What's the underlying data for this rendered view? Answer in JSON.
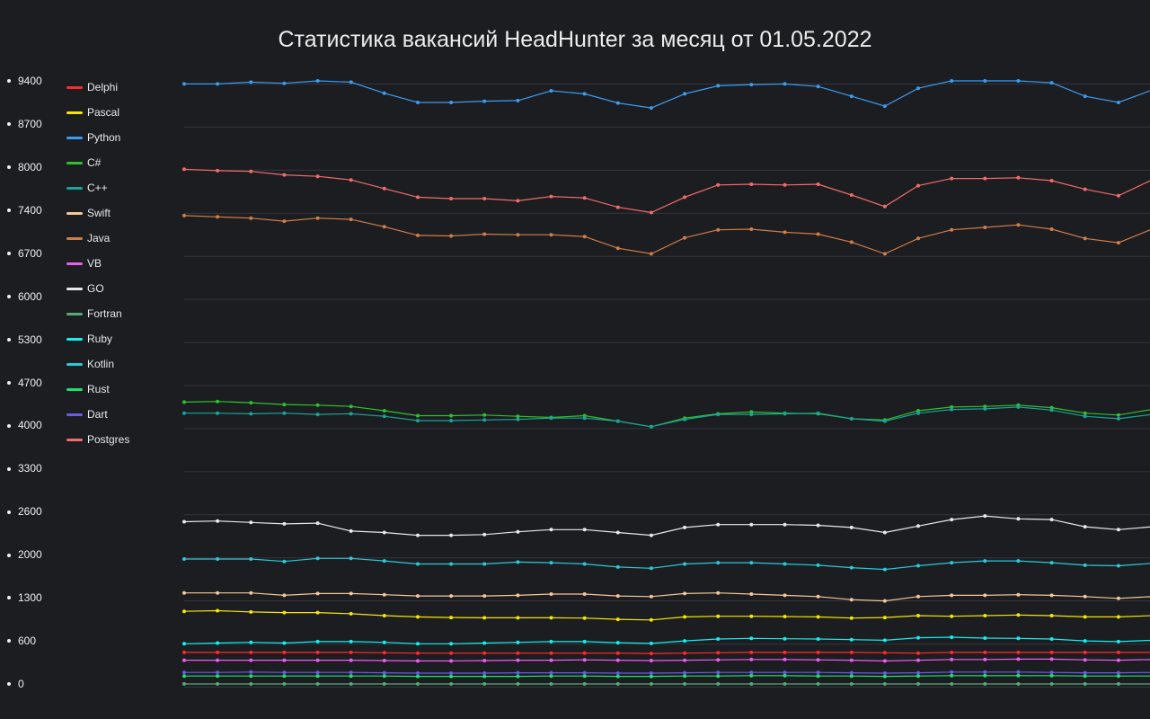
{
  "chart_data": {
    "type": "line",
    "title": "Статистика вакансий HeadHunter за месяц от 01.05.2022",
    "xlabel": "",
    "ylabel": "",
    "yticks": [
      "9400",
      "8700",
      "8000",
      "7400",
      "6700",
      "6000",
      "5300",
      "4700",
      "4000",
      "3300",
      "2600",
      "2000",
      "1300",
      "600",
      "0"
    ],
    "ylim": [
      0,
      9400
    ],
    "grid": true,
    "legend_position": "top-left",
    "x": [
      1,
      2,
      3,
      4,
      5,
      6,
      7,
      8,
      9,
      10,
      11,
      12,
      13,
      14,
      15,
      16,
      17,
      18,
      19,
      20,
      21,
      22,
      23,
      24,
      25,
      26,
      27,
      28,
      29,
      30
    ],
    "series": [
      {
        "name": "Delphi",
        "color": "#ff2a2a",
        "values": [
          440,
          440,
          440,
          440,
          440,
          440,
          435,
          430,
          430,
          430,
          430,
          430,
          430,
          430,
          425,
          430,
          435,
          440,
          440,
          440,
          440,
          435,
          430,
          440,
          440,
          440,
          440,
          440,
          440,
          440
        ]
      },
      {
        "name": "Pascal",
        "color": "#f5e50b",
        "values": [
          1080,
          1090,
          1070,
          1060,
          1060,
          1040,
          1010,
          990,
          980,
          975,
          975,
          975,
          970,
          950,
          940,
          990,
          1000,
          1000,
          995,
          990,
          970,
          980,
          1010,
          1000,
          1010,
          1020,
          1010,
          990,
          990,
          1010
        ]
      },
      {
        "name": "Python",
        "color": "#3b9cf0",
        "values": [
          9350,
          9350,
          9380,
          9360,
          9430,
          9380,
          9200,
          9050,
          9050,
          9070,
          9080,
          9240,
          9190,
          9040,
          8960,
          9190,
          9320,
          9340,
          9350,
          9310,
          9150,
          8990,
          9280,
          9440,
          9430,
          9410,
          9370,
          9150,
          9050,
          9250
        ]
      },
      {
        "name": "C#",
        "color": "#2dc22d",
        "values": [
          4380,
          4390,
          4370,
          4340,
          4330,
          4310,
          4240,
          4160,
          4160,
          4170,
          4150,
          4130,
          4160,
          4070,
          3980,
          4120,
          4190,
          4220,
          4200,
          4190,
          4110,
          4090,
          4240,
          4300,
          4310,
          4330,
          4290,
          4200,
          4170,
          4260
        ]
      },
      {
        "name": "C++",
        "color": "#1aa39a",
        "values": [
          4200,
          4200,
          4190,
          4200,
          4180,
          4190,
          4150,
          4080,
          4080,
          4090,
          4100,
          4120,
          4120,
          4070,
          3980,
          4100,
          4180,
          4180,
          4190,
          4200,
          4110,
          4070,
          4200,
          4260,
          4270,
          4300,
          4250,
          4150,
          4110,
          4180
        ]
      },
      {
        "name": "Swift",
        "color": "#f5c79a",
        "values": [
          1380,
          1380,
          1380,
          1340,
          1370,
          1370,
          1350,
          1330,
          1330,
          1330,
          1340,
          1360,
          1360,
          1330,
          1320,
          1370,
          1380,
          1360,
          1340,
          1320,
          1270,
          1250,
          1320,
          1340,
          1340,
          1350,
          1340,
          1320,
          1290,
          1320
        ]
      },
      {
        "name": "Java",
        "color": "#d07d48",
        "values": [
          7310,
          7290,
          7270,
          7220,
          7270,
          7250,
          7130,
          6990,
          6980,
          7010,
          7000,
          7000,
          6970,
          6780,
          6690,
          6950,
          7080,
          7090,
          7040,
          7010,
          6880,
          6690,
          6940,
          7080,
          7120,
          7160,
          7090,
          6940,
          6870,
          7090
        ]
      },
      {
        "name": "VB",
        "color": "#f05cf0",
        "values": [
          330,
          330,
          330,
          330,
          330,
          330,
          325,
          320,
          320,
          325,
          330,
          330,
          335,
          330,
          325,
          330,
          335,
          340,
          340,
          335,
          330,
          320,
          330,
          340,
          340,
          345,
          345,
          335,
          330,
          340
        ]
      },
      {
        "name": "GO",
        "color": "#e8e8e8",
        "values": [
          2460,
          2470,
          2450,
          2430,
          2440,
          2330,
          2310,
          2270,
          2270,
          2280,
          2320,
          2350,
          2350,
          2310,
          2270,
          2380,
          2420,
          2420,
          2420,
          2410,
          2380,
          2310,
          2400,
          2490,
          2540,
          2500,
          2490,
          2390,
          2350,
          2390
        ]
      },
      {
        "name": "Fortran",
        "color": "#5aa878",
        "values": [
          0,
          0,
          0,
          0,
          0,
          0,
          0,
          0,
          0,
          0,
          0,
          0,
          0,
          0,
          0,
          0,
          0,
          0,
          0,
          0,
          0,
          0,
          0,
          0,
          0,
          0,
          0,
          0,
          0,
          0
        ]
      },
      {
        "name": "Ruby",
        "color": "#12f0f0",
        "values": [
          560,
          570,
          580,
          570,
          590,
          590,
          580,
          560,
          560,
          570,
          580,
          590,
          590,
          575,
          565,
          600,
          630,
          640,
          635,
          630,
          620,
          610,
          650,
          660,
          645,
          640,
          630,
          600,
          590,
          610
        ]
      },
      {
        "name": "Kotlin",
        "color": "#2bc9d9",
        "values": [
          1930,
          1930,
          1930,
          1890,
          1940,
          1940,
          1900,
          1850,
          1850,
          1850,
          1880,
          1870,
          1850,
          1800,
          1780,
          1850,
          1870,
          1870,
          1850,
          1830,
          1790,
          1760,
          1820,
          1870,
          1900,
          1900,
          1870,
          1830,
          1820,
          1860
        ]
      },
      {
        "name": "Rust",
        "color": "#19e36a",
        "values": [
          110,
          110,
          110,
          110,
          110,
          110,
          110,
          105,
          105,
          105,
          105,
          110,
          110,
          105,
          105,
          110,
          110,
          115,
          115,
          110,
          110,
          105,
          110,
          115,
          115,
          115,
          115,
          110,
          110,
          110
        ]
      },
      {
        "name": "Dart",
        "color": "#6a5ce6",
        "values": [
          160,
          160,
          165,
          160,
          160,
          160,
          155,
          150,
          150,
          150,
          155,
          155,
          155,
          150,
          150,
          155,
          160,
          160,
          160,
          160,
          155,
          150,
          155,
          165,
          165,
          165,
          160,
          155,
          155,
          160
        ]
      },
      {
        "name": "Postgres",
        "color": "#f26b6b",
        "values": [
          7970,
          7950,
          7940,
          7890,
          7870,
          7820,
          7700,
          7580,
          7560,
          7560,
          7530,
          7590,
          7570,
          7440,
          7360,
          7580,
          7750,
          7760,
          7750,
          7760,
          7610,
          7450,
          7740,
          7840,
          7840,
          7850,
          7810,
          7690,
          7600,
          7820
        ]
      }
    ]
  }
}
